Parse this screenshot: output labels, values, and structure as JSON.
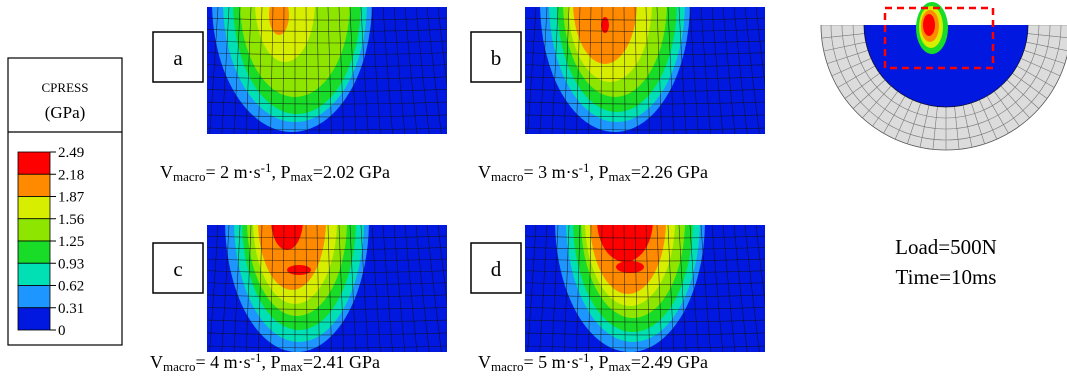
{
  "legend": {
    "title": "CPRESS",
    "unit": "(GPa)",
    "levels": [
      "2.49",
      "2.18",
      "1.87",
      "1.56",
      "1.25",
      "0.93",
      "0.62",
      "0.31",
      "0"
    ],
    "colors": [
      "#ff0000",
      "#ff8a00",
      "#d8ee00",
      "#8ee600",
      "#18dc28",
      "#00e0b4",
      "#1e96ff",
      "#0018e0"
    ]
  },
  "panels": [
    {
      "label": "a",
      "caption": [
        {
          "t": "V"
        },
        {
          "sub": "macro"
        },
        {
          "t": "= 2 m·s"
        },
        {
          "sup": "-1"
        },
        {
          "t": ", P"
        },
        {
          "sub": "max"
        },
        {
          "t": "=2.02 GPa"
        }
      ]
    },
    {
      "label": "b",
      "caption": [
        {
          "t": "V"
        },
        {
          "sub": "macro"
        },
        {
          "t": "= 3 m·s"
        },
        {
          "sup": "-1"
        },
        {
          "t": ", P"
        },
        {
          "sub": "max"
        },
        {
          "t": "=2.26 GPa"
        }
      ]
    },
    {
      "label": "c",
      "caption": [
        {
          "t": "V"
        },
        {
          "sub": "macro"
        },
        {
          "t": "= 4 m·s"
        },
        {
          "sup": "-1"
        },
        {
          "t": ", P"
        },
        {
          "sub": "max"
        },
        {
          "t": "=2.41 GPa"
        }
      ]
    },
    {
      "label": "d",
      "caption": [
        {
          "t": "V"
        },
        {
          "sub": "macro"
        },
        {
          "t": "= 5 m·s"
        },
        {
          "sup": "-1"
        },
        {
          "t": ", P"
        },
        {
          "sub": "max"
        },
        {
          "t": "=2.49 GPa"
        }
      ]
    }
  ],
  "conditions": [
    "Load=500N",
    "Time=10ms"
  ]
}
